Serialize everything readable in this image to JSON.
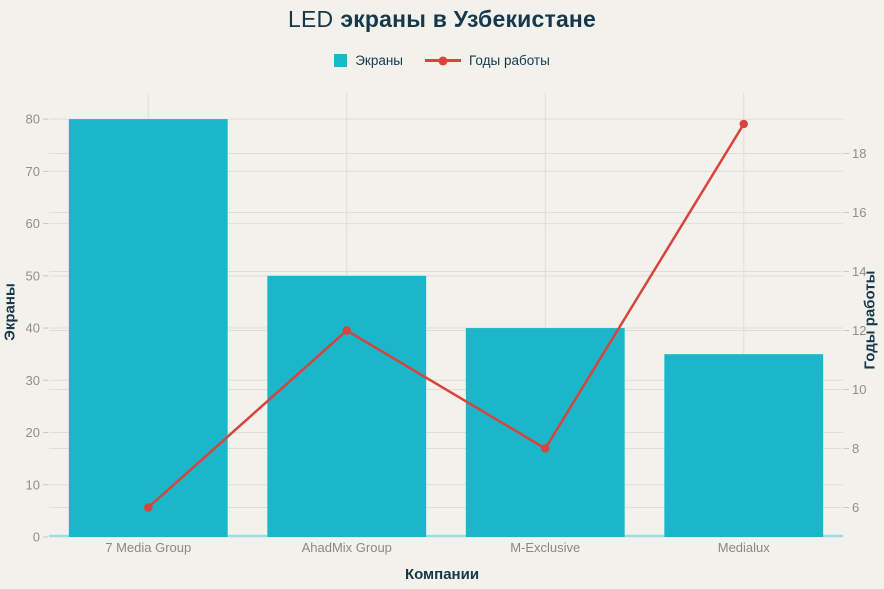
{
  "title": {
    "prefix": "LED",
    "main": "экраны в Узбекистане"
  },
  "legend": {
    "items": [
      {
        "label": "Экраны",
        "marker": "square"
      },
      {
        "label": "Годы работы",
        "marker": "line-dot"
      }
    ]
  },
  "chart_data": {
    "type": "combo-bar-line",
    "title": "LED экраны в Узбекистане",
    "categories": [
      "7 Media Group",
      "AhadMix Group",
      "M-Exclusive",
      "Medialux"
    ],
    "series": [
      {
        "name": "Экраны",
        "type": "bar",
        "yaxis": "left",
        "color": "#1bb6ca",
        "values": [
          80,
          50,
          40,
          35
        ]
      },
      {
        "name": "Годы работы",
        "type": "line",
        "yaxis": "right",
        "color": "#d8433c",
        "values": [
          6,
          12,
          8,
          19
        ]
      }
    ],
    "xlabel": "Компании",
    "yaxis_left": {
      "label": "Экраны",
      "ticks": [
        0,
        10,
        20,
        30,
        40,
        50,
        60,
        70,
        80
      ],
      "range": [
        0,
        85
      ]
    },
    "yaxis_right": {
      "label": "Годы работы",
      "ticks": [
        6,
        8,
        10,
        12,
        14,
        16,
        18
      ],
      "range": [
        5,
        20.05
      ]
    },
    "grid": true,
    "legend_position": "top",
    "colors": {
      "background": "#f2f1ec",
      "grid": "#dfddd6",
      "tick_mark": "#c9c6bf",
      "tick_text": "#908e87",
      "category_text": "#8a887f",
      "heading_text": "#16384a",
      "baseline": "#9bdde3"
    }
  }
}
